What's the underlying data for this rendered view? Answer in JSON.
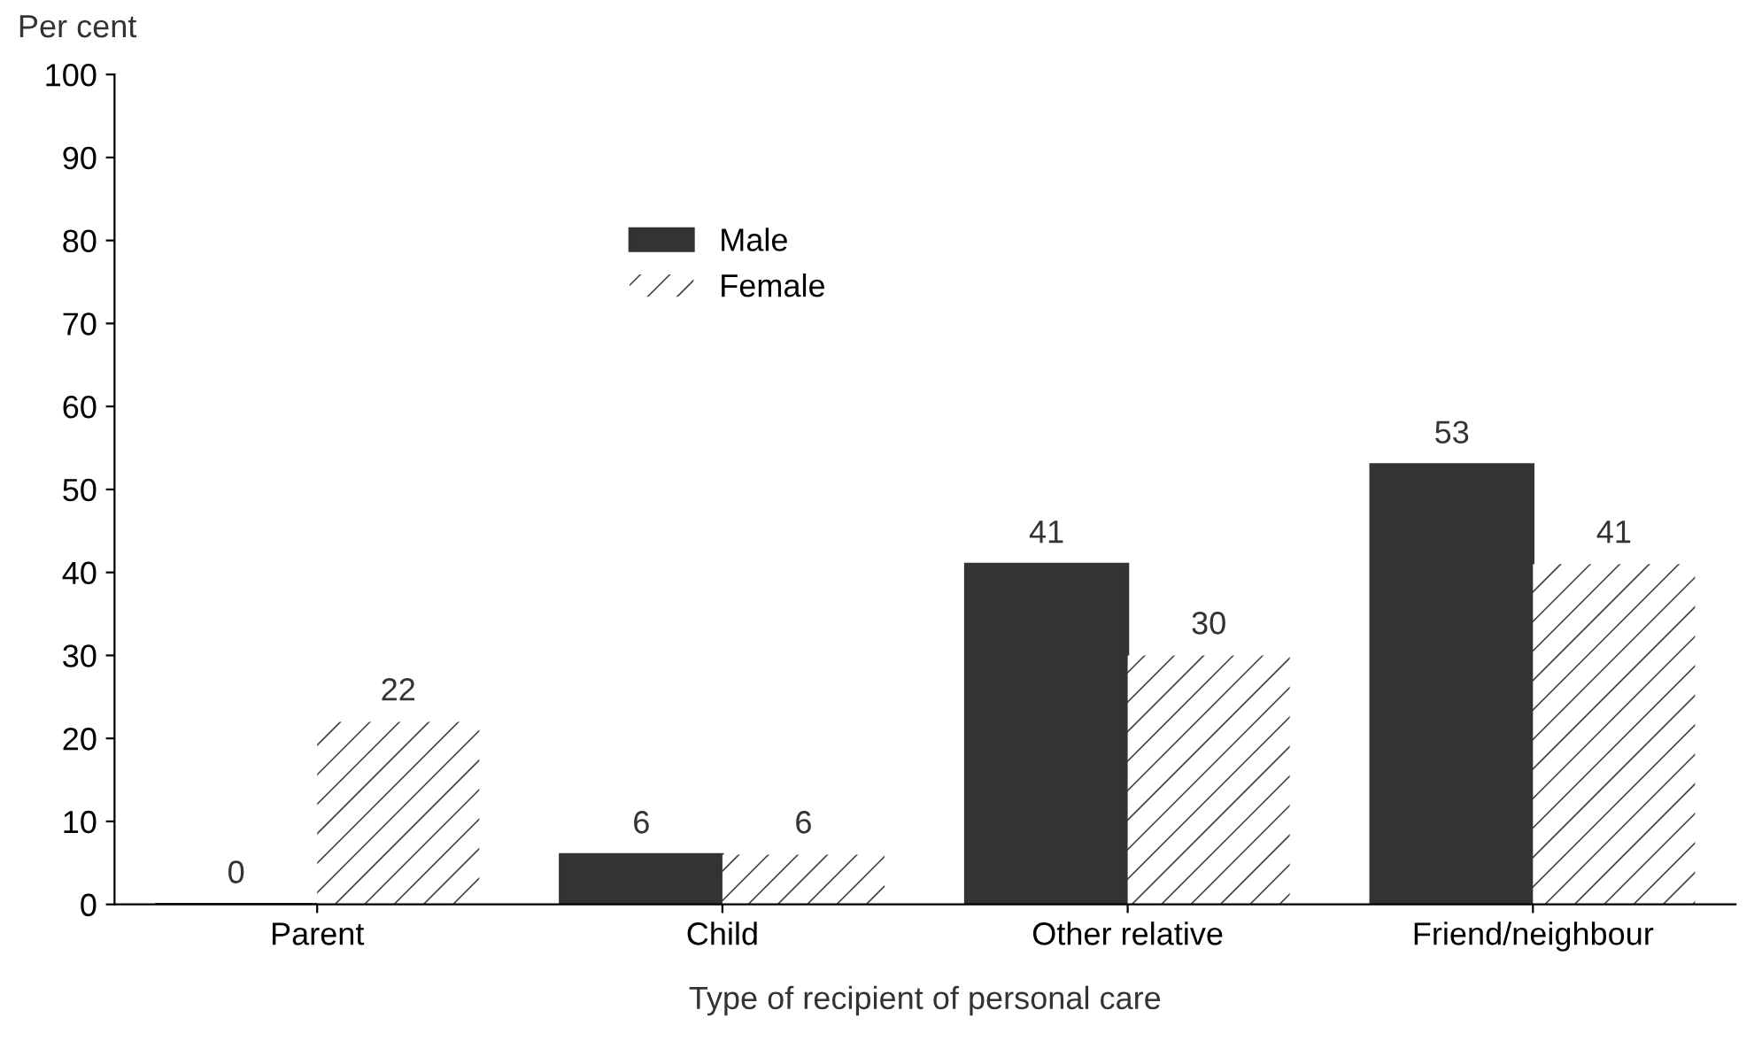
{
  "chart_data": {
    "type": "bar",
    "ylabel": "Per cent",
    "xlabel": "Type of recipient of personal care",
    "categories": [
      "Parent",
      "Child",
      "Other relative",
      "Friend/neighbour"
    ],
    "series": [
      {
        "name": "Male",
        "color": "#333333",
        "values": [
          0,
          6,
          41,
          53
        ]
      },
      {
        "name": "Female",
        "color": "#ffffff",
        "values": [
          22,
          6,
          30,
          41
        ]
      }
    ],
    "ylim": [
      0,
      100
    ],
    "yticks": [
      0,
      10,
      20,
      30,
      40,
      50,
      60,
      70,
      80,
      90,
      100
    ],
    "grid": false,
    "legend": "top left",
    "data_labels": true
  }
}
